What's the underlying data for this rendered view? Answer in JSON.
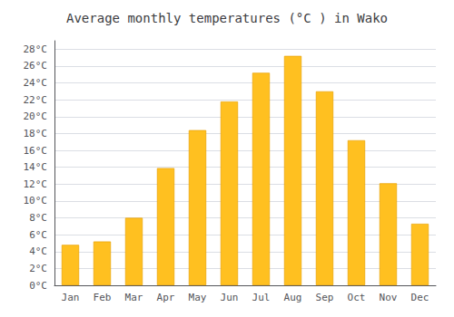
{
  "chart_data": {
    "type": "bar",
    "title": "Average monthly temperatures (°C ) in Wako",
    "categories": [
      "Jan",
      "Feb",
      "Mar",
      "Apr",
      "May",
      "Jun",
      "Jul",
      "Aug",
      "Sep",
      "Oct",
      "Nov",
      "Dec"
    ],
    "values": [
      4.8,
      5.2,
      8.0,
      13.9,
      18.4,
      21.8,
      25.2,
      27.2,
      23.0,
      17.2,
      12.1,
      7.3
    ],
    "color": "#FFC020",
    "ylim": [
      0,
      29
    ],
    "yticks": [
      {
        "value": 0,
        "label": "0°C"
      },
      {
        "value": 2,
        "label": "2°C"
      },
      {
        "value": 4,
        "label": "4°C"
      },
      {
        "value": 6,
        "label": "6°C"
      },
      {
        "value": 8,
        "label": "8°C"
      },
      {
        "value": 10,
        "label": "10°C"
      },
      {
        "value": 12,
        "label": "12°C"
      },
      {
        "value": 14,
        "label": "14°C"
      },
      {
        "value": 16,
        "label": "16°C"
      },
      {
        "value": 18,
        "label": "18°C"
      },
      {
        "value": 20,
        "label": "20°C"
      },
      {
        "value": 22,
        "label": "22°C"
      },
      {
        "value": 24,
        "label": "24°C"
      },
      {
        "value": 26,
        "label": "26°C"
      },
      {
        "value": 28,
        "label": "28°C"
      }
    ],
    "grid": true
  }
}
